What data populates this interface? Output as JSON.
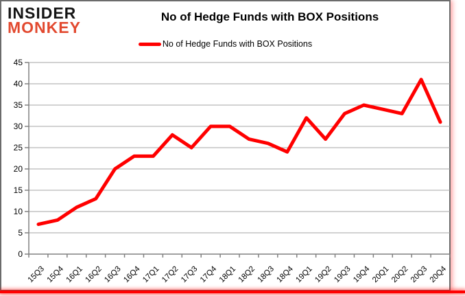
{
  "logo": {
    "line1": "INSIDER",
    "line2": "MONKEY"
  },
  "header": {
    "title": "No of Hedge Funds with BOX Positions"
  },
  "legend": {
    "label": "No of Hedge Funds with BOX Positions"
  },
  "colors": {
    "series_line": "#ff0000",
    "logo_black": "#141414",
    "logo_red": "#e2492f",
    "gridline": "#a6a6a6",
    "axis": "#808080",
    "tick_text": "#000000",
    "frame_border": "#6b6b6b",
    "bottom_bar": "#ff0000"
  },
  "chart_data": {
    "type": "line",
    "title": "No of Hedge Funds with BOX Positions",
    "series_name": "No of Hedge Funds with BOX Positions",
    "categories": [
      "15Q3",
      "15Q4",
      "16Q1",
      "16Q2",
      "16Q3",
      "16Q4",
      "17Q1",
      "17Q2",
      "17Q3",
      "17Q4",
      "18Q1",
      "18Q2",
      "18Q3",
      "18Q4",
      "19Q1",
      "19Q2",
      "19Q3",
      "19Q4",
      "20Q1",
      "20Q2",
      "20Q3",
      "20Q4"
    ],
    "values": [
      7,
      8,
      11,
      13,
      20,
      23,
      23,
      28,
      25,
      30,
      30,
      27,
      26,
      24,
      32,
      27,
      33,
      35,
      34,
      33,
      41,
      31
    ],
    "xlabel": "",
    "ylabel": "",
    "ylim": [
      0,
      45
    ],
    "yticks": [
      0,
      5,
      10,
      15,
      20,
      25,
      30,
      35,
      40,
      45
    ],
    "grid": true,
    "legend_position": "top"
  }
}
